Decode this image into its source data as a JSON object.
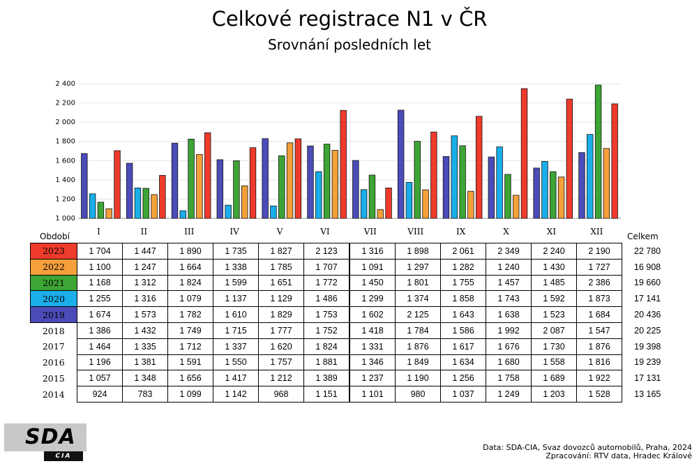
{
  "title": "Celkové registrace N1 v ČR",
  "subtitle": "Srovnání posledních let",
  "chart_data": {
    "type": "bar",
    "categories": [
      "I",
      "II",
      "III",
      "IV",
      "V",
      "VI",
      "VII",
      "VIII",
      "IX",
      "X",
      "XI",
      "XII"
    ],
    "series": [
      {
        "name": "2019",
        "color": "#4b4cb8",
        "values": [
          1674,
          1573,
          1782,
          1610,
          1829,
          1753,
          1602,
          2125,
          1643,
          1638,
          1523,
          1684
        ]
      },
      {
        "name": "2020",
        "color": "#1aaeea",
        "values": [
          1255,
          1316,
          1079,
          1137,
          1129,
          1486,
          1299,
          1374,
          1858,
          1743,
          1592,
          1873
        ]
      },
      {
        "name": "2021",
        "color": "#3da535",
        "values": [
          1168,
          1312,
          1824,
          1599,
          1651,
          1772,
          1450,
          1801,
          1755,
          1457,
          1485,
          2386
        ]
      },
      {
        "name": "2022",
        "color": "#f5a03a",
        "values": [
          1100,
          1247,
          1664,
          1338,
          1785,
          1707,
          1091,
          1297,
          1282,
          1240,
          1430,
          1727
        ]
      },
      {
        "name": "2023",
        "color": "#ef3b2c",
        "values": [
          1704,
          1447,
          1890,
          1735,
          1827,
          2123,
          1316,
          1898,
          2061,
          2349,
          2240,
          2190
        ]
      }
    ],
    "yticks": [
      "1 000",
      "1 200",
      "1 400",
      "1 600",
      "1 800",
      "2 000",
      "2 200",
      "2 400"
    ],
    "ylim": [
      1000,
      2400
    ],
    "grid": true
  },
  "table": {
    "period_label": "Období",
    "total_label": "Celkem",
    "months": [
      "I",
      "II",
      "III",
      "IV",
      "V",
      "VI",
      "VII",
      "VIII",
      "IX",
      "X",
      "XI",
      "XII"
    ],
    "rows": [
      {
        "year": "2023",
        "color": "#ef3b2c",
        "values": [
          "1 704",
          "1 447",
          "1 890",
          "1 735",
          "1 827",
          "2 123",
          "1 316",
          "1 898",
          "2 061",
          "2 349",
          "2 240",
          "2 190"
        ],
        "total": "22 780"
      },
      {
        "year": "2022",
        "color": "#f5a03a",
        "values": [
          "1 100",
          "1 247",
          "1 664",
          "1 338",
          "1 785",
          "1 707",
          "1 091",
          "1 297",
          "1 282",
          "1 240",
          "1 430",
          "1 727"
        ],
        "total": "16 908"
      },
      {
        "year": "2021",
        "color": "#3da535",
        "values": [
          "1 168",
          "1 312",
          "1 824",
          "1 599",
          "1 651",
          "1 772",
          "1 450",
          "1 801",
          "1 755",
          "1 457",
          "1 485",
          "2 386"
        ],
        "total": "19 660"
      },
      {
        "year": "2020",
        "color": "#1aaeea",
        "values": [
          "1 255",
          "1 316",
          "1 079",
          "1 137",
          "1 129",
          "1 486",
          "1 299",
          "1 374",
          "1 858",
          "1 743",
          "1 592",
          "1 873"
        ],
        "total": "17 141"
      },
      {
        "year": "2019",
        "color": "#4b4cb8",
        "values": [
          "1 674",
          "1 573",
          "1 782",
          "1 610",
          "1 829",
          "1 753",
          "1 602",
          "2 125",
          "1 643",
          "1 638",
          "1 523",
          "1 684"
        ],
        "total": "20 436"
      },
      {
        "year": "2018",
        "color": "",
        "values": [
          "1 386",
          "1 432",
          "1 749",
          "1 715",
          "1 777",
          "1 752",
          "1 418",
          "1 784",
          "1 586",
          "1 992",
          "2 087",
          "1 547"
        ],
        "total": "20 225"
      },
      {
        "year": "2017",
        "color": "",
        "values": [
          "1 464",
          "1 335",
          "1 712",
          "1 337",
          "1 620",
          "1 824",
          "1 331",
          "1 876",
          "1 617",
          "1 676",
          "1 730",
          "1 876"
        ],
        "total": "19 398"
      },
      {
        "year": "2016",
        "color": "",
        "values": [
          "1 196",
          "1 381",
          "1 591",
          "1 550",
          "1 757",
          "1 881",
          "1 346",
          "1 849",
          "1 634",
          "1 680",
          "1 558",
          "1 816"
        ],
        "total": "19 239"
      },
      {
        "year": "2015",
        "color": "",
        "values": [
          "1 057",
          "1 348",
          "1 656",
          "1 417",
          "1 212",
          "1 389",
          "1 237",
          "1 190",
          "1 256",
          "1 758",
          "1 689",
          "1 922"
        ],
        "total": "17 131"
      },
      {
        "year": "2014",
        "color": "",
        "values": [
          "924",
          "783",
          "1 099",
          "1 142",
          "968",
          "1 151",
          "1 101",
          "980",
          "1 037",
          "1 249",
          "1 203",
          "1 528"
        ],
        "total": "13 165"
      }
    ]
  },
  "logo": {
    "main": "SDA",
    "sub": "CIA"
  },
  "source": {
    "line1": "Data: SDA-CIA, Svaz dovozců automobilů, Praha, 2024",
    "line2": "Zpracování: RTV data, Hradec Králové"
  }
}
